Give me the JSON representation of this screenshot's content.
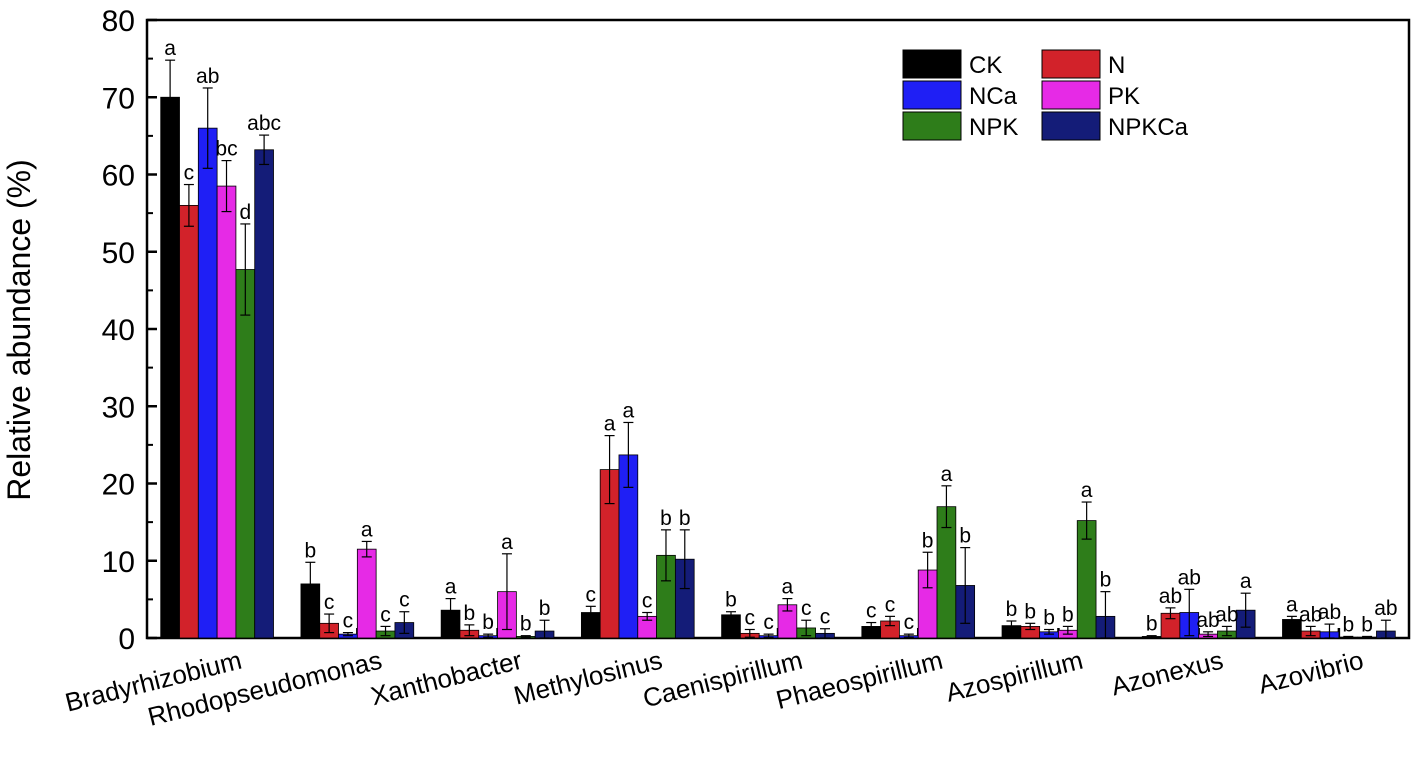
{
  "chart_data": {
    "type": "bar",
    "ylabel": "Relative abundance (%)",
    "ylim": [
      0,
      80
    ],
    "yticks": [
      "0",
      "10",
      "20",
      "30",
      "40",
      "50",
      "60",
      "70",
      "80"
    ],
    "grid": false,
    "legend_position": "top-right",
    "categories": [
      "Bradyrhizobium",
      "Rhodopseudomonas",
      "Xanthobacter",
      "Methylosinus",
      "Caenispirillum",
      "Phaeospirillum",
      "Azospirillum",
      "Azonexus",
      "Azovibrio"
    ],
    "series": [
      {
        "name": "CK",
        "color": "#000000",
        "values": [
          70,
          7,
          3.6,
          3.3,
          3,
          1.5,
          1.6,
          0.2,
          2.4
        ],
        "errors": [
          4.8,
          2.8,
          1.5,
          0.8,
          0.4,
          0.5,
          0.6,
          0.1,
          0.4
        ],
        "labels": [
          "a",
          "b",
          "a",
          "c",
          "b",
          "c",
          "b",
          "b",
          "a"
        ]
      },
      {
        "name": "N",
        "color": "#d2222a",
        "values": [
          56,
          1.9,
          1,
          21.8,
          0.6,
          2.2,
          1.5,
          3.2,
          0.9
        ],
        "errors": [
          2.7,
          1.2,
          0.7,
          4.4,
          0.5,
          0.6,
          0.4,
          0.7,
          0.6
        ],
        "labels": [
          "c",
          "c",
          "b",
          "a",
          "c",
          "c",
          "b",
          "ab",
          "ab"
        ]
      },
      {
        "name": "NCa",
        "color": "#1f1ff5",
        "values": [
          66,
          0.5,
          0.3,
          23.7,
          0.3,
          0.3,
          0.8,
          3.3,
          0.8
        ],
        "errors": [
          5.2,
          0.2,
          0.2,
          4.2,
          0.2,
          0.2,
          0.3,
          3,
          1
        ],
        "labels": [
          "ab",
          "c",
          "b",
          "a",
          "c",
          "c",
          "b",
          "ab",
          "ab"
        ]
      },
      {
        "name": "PK",
        "color": "#e62ae6",
        "values": [
          58.5,
          11.5,
          6,
          2.8,
          4.3,
          8.8,
          1,
          0.5,
          0.1
        ],
        "errors": [
          3.3,
          1,
          4.9,
          0.5,
          0.8,
          2.3,
          0.5,
          0.3,
          0.1
        ],
        "labels": [
          "bc",
          "a",
          "a",
          "c",
          "a",
          "b",
          "b",
          "ab",
          "b"
        ]
      },
      {
        "name": "NPK",
        "color": "#2e7d1a",
        "values": [
          47.7,
          0.9,
          0.2,
          10.7,
          1.3,
          17,
          15.2,
          0.9,
          0.1
        ],
        "errors": [
          5.9,
          0.6,
          0.1,
          3.3,
          1,
          2.7,
          2.4,
          0.6,
          0.1
        ],
        "labels": [
          "d",
          "c",
          "b",
          "b",
          "c",
          "a",
          "a",
          "ab",
          "b"
        ]
      },
      {
        "name": "NPKCa",
        "color": "#141c78",
        "values": [
          63.2,
          2,
          0.9,
          10.2,
          0.6,
          6.8,
          2.8,
          3.6,
          0.9
        ],
        "errors": [
          1.9,
          1.4,
          1.4,
          3.8,
          0.6,
          4.9,
          3.2,
          2.2,
          1.4
        ],
        "labels": [
          "abc",
          "c",
          "b",
          "b",
          "c",
          "b",
          "b",
          "a",
          "ab"
        ]
      }
    ]
  }
}
